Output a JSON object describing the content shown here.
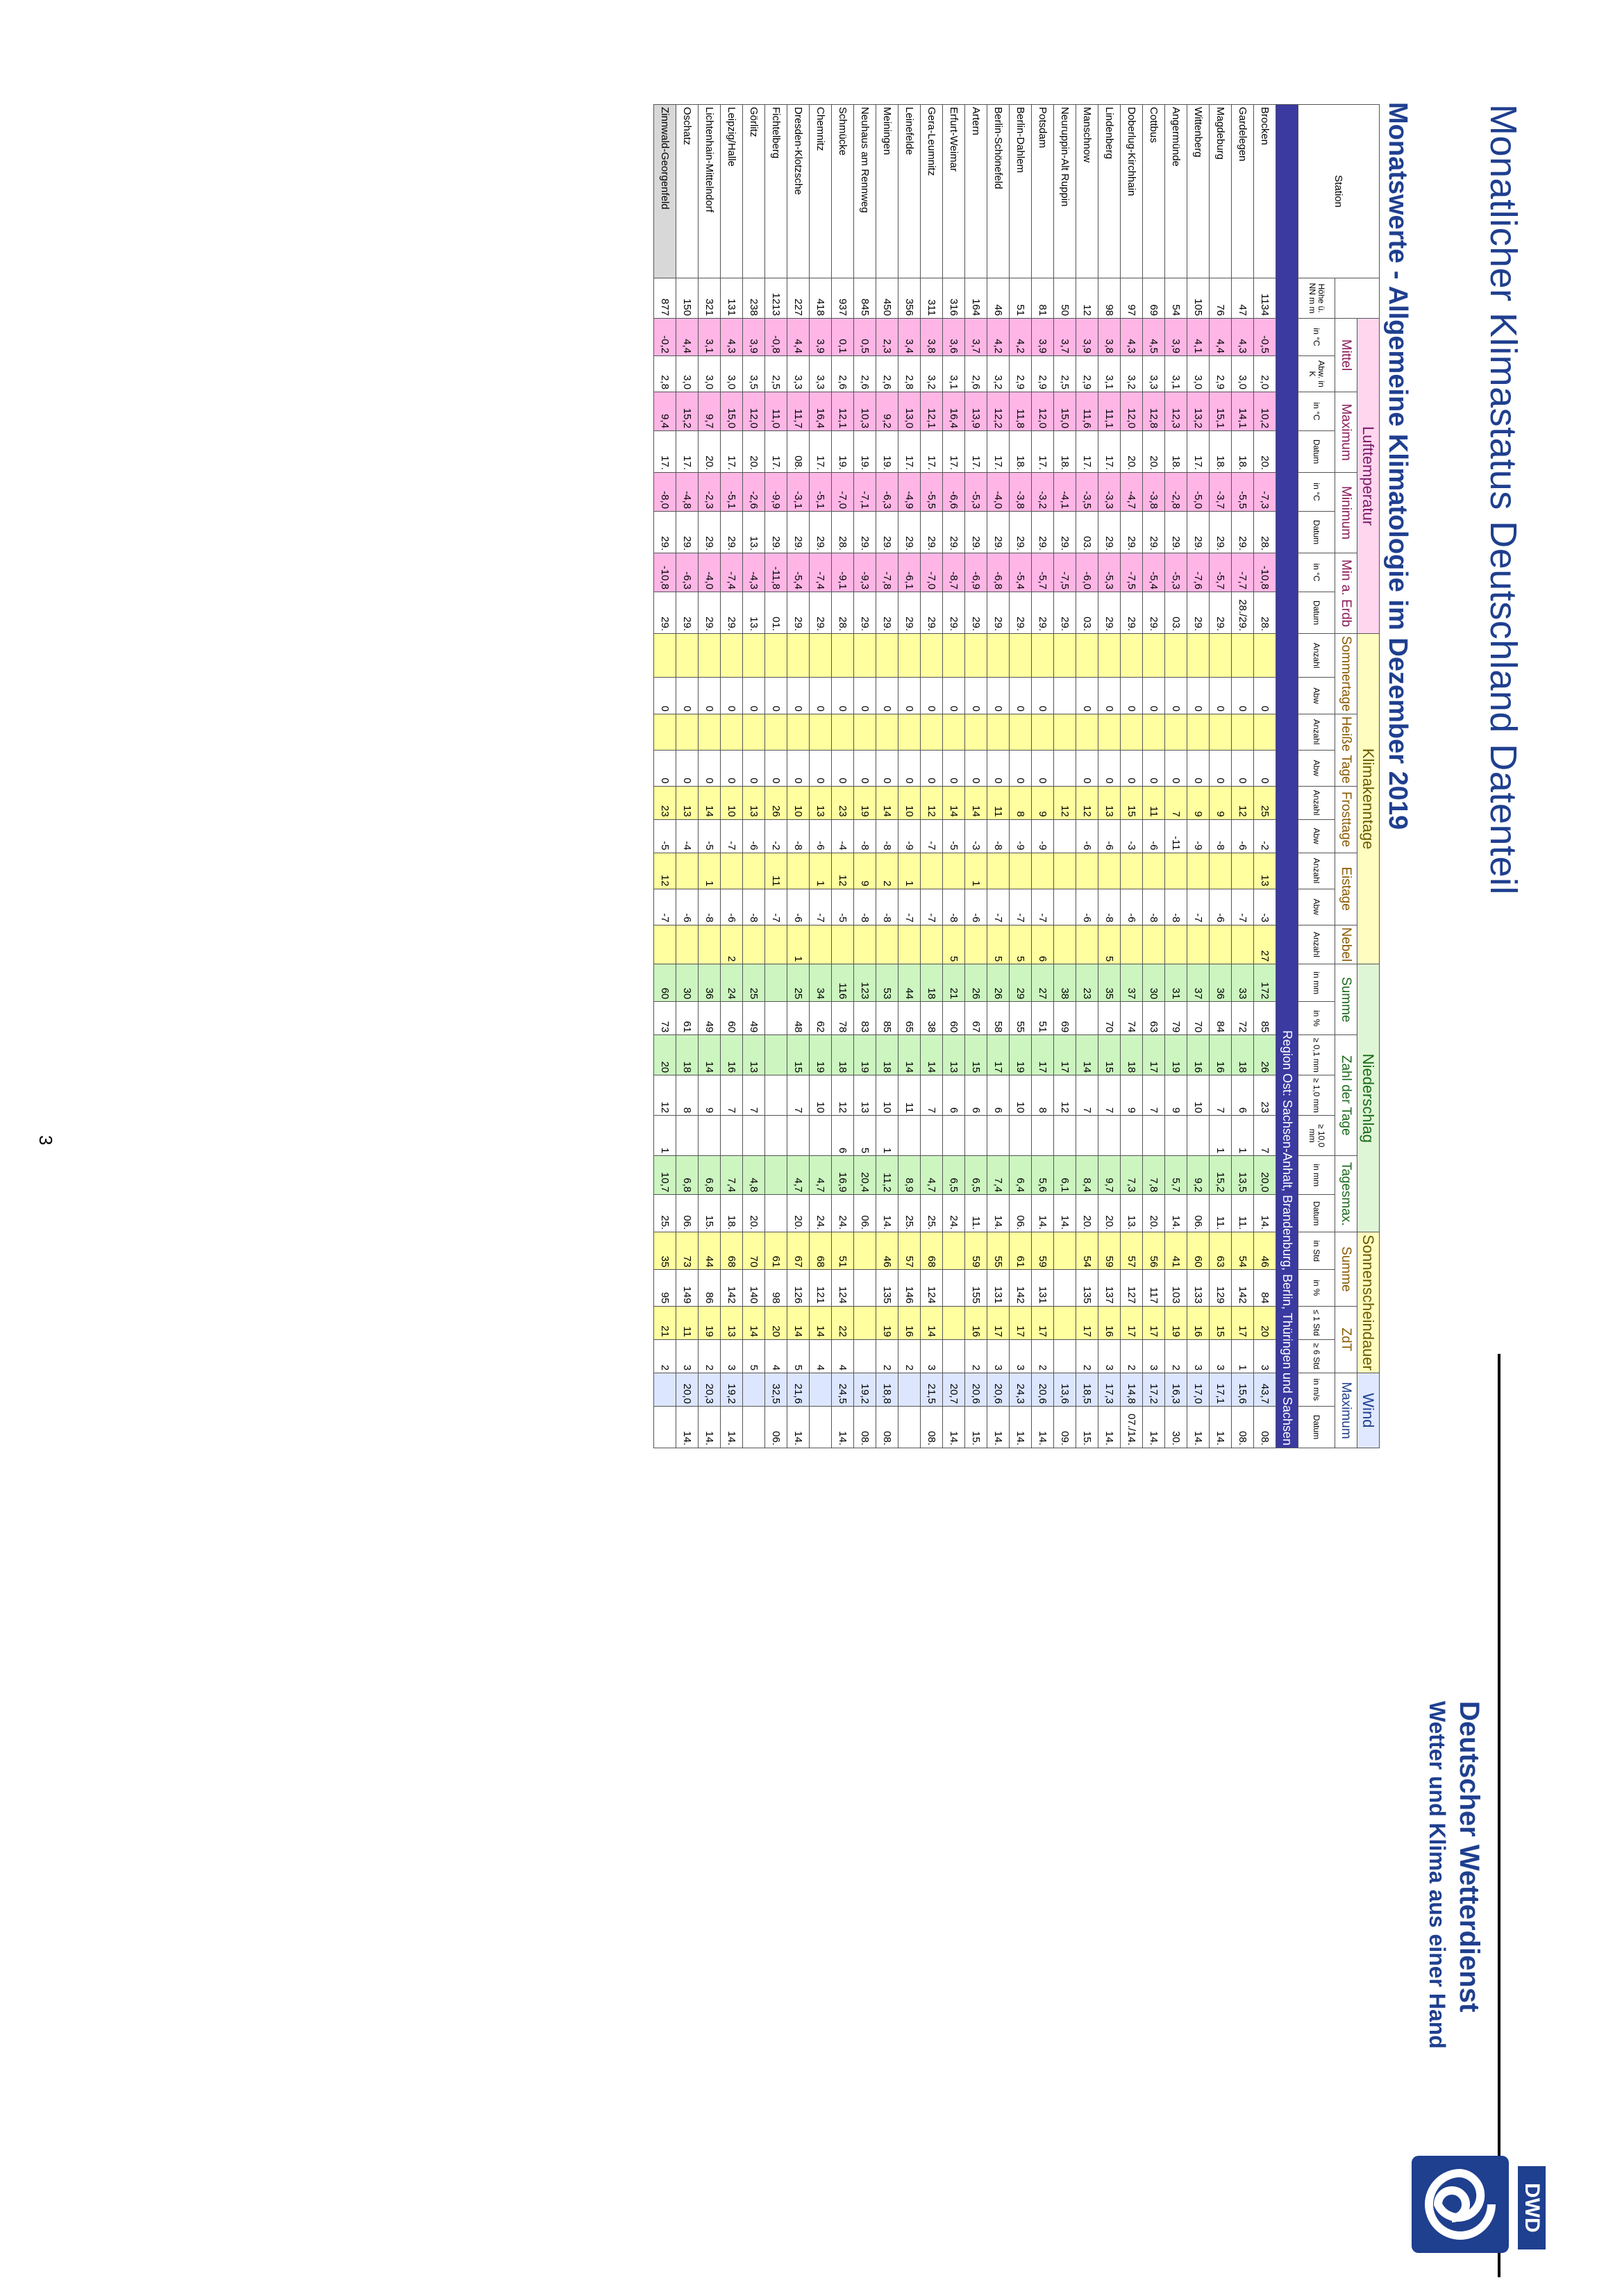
{
  "header": {
    "title": "Monatlicher Klimastatus Deutschland Datenteil",
    "subtitle": "Monatswerte - Allgemeine Klimatologie im Dezember 2019",
    "org_name": "Deutscher Wetterdienst",
    "org_slogan": "Wetter und Klima aus einer Hand",
    "logo_text": "DWD"
  },
  "groups": {
    "station": "Station",
    "temp": "Lufttemperatur",
    "klima": "Klimakenntage",
    "nied": "Niederschlag",
    "sonne": "Sonnenscheindauer",
    "wind": "Wind"
  },
  "subgroups": {
    "mittel": "Mittel",
    "maximum": "Maximum",
    "minimum": "Minimum",
    "min_erdb": "Min a. Erdb",
    "sommertage": "Sommertage",
    "heisse": "Heiße Tage",
    "frosttage": "Frosttage",
    "eistage": "Eistage",
    "nebel": "Nebel",
    "summe": "Summe",
    "zahl": "Zahl der Tage",
    "tagesmax": "Tagesmax.",
    "s_summe": "Summe",
    "zdt": "ZdT",
    "w_max": "Maximum"
  },
  "units": [
    "Höhe ü. NN m m",
    "in °C",
    "Abw. in K",
    "in °C",
    "Datum",
    "in °C",
    "Datum",
    "in °C",
    "Datum",
    "Anzahl",
    "Abw",
    "Anzahl",
    "Abw",
    "Anzahl",
    "Abw",
    "Anzahl",
    "Abw",
    "Anzahl",
    "in mm",
    "in %",
    "≥ 0,1 mm",
    "≥ 1,0 mm",
    "≥ 10,0 mm",
    "in mm",
    "Datum",
    "in Std",
    "in %",
    "≤ 1 Std",
    "≥ 6 Std",
    "in m/s",
    "Datum"
  ],
  "region": "Region Ost: Sachsen-Anhalt, Brandenburg, Berlin, Thüringen und Sachsen",
  "rows": [
    {
      "s": "Brocken",
      "v": [
        "1134",
        "-0,5",
        "2,0",
        "10,2",
        "20.",
        "-7,3",
        "28.",
        "-10,8",
        "28.",
        "",
        "0",
        "",
        "0",
        "25",
        "-2",
        "13",
        "-3",
        "27",
        "172",
        "85",
        "26",
        "23",
        "7",
        "20,0",
        "14.",
        "46",
        "84",
        "20",
        "3",
        "43,7",
        "08."
      ],
      "g": false
    },
    {
      "s": "Gardelegen",
      "v": [
        "47",
        "4,3",
        "3,0",
        "14,1",
        "18.",
        "-5,5",
        "29.",
        "-7,7",
        "28./29.",
        "",
        "0",
        "",
        "0",
        "12",
        "-6",
        "",
        "-7",
        "",
        "33",
        "72",
        "18",
        "6",
        "1",
        "13,5",
        "11.",
        "54",
        "142",
        "17",
        "1",
        "15,6",
        "08."
      ],
      "g": false
    },
    {
      "s": "Magdeburg",
      "v": [
        "76",
        "4,4",
        "2,9",
        "15,1",
        "18.",
        "-3,7",
        "29.",
        "-5,7",
        "29.",
        "",
        "0",
        "",
        "0",
        "9",
        "-8",
        "",
        "-6",
        "",
        "36",
        "84",
        "16",
        "7",
        "1",
        "15,2",
        "11.",
        "63",
        "129",
        "15",
        "3",
        "17,1",
        "14."
      ],
      "g": false
    },
    {
      "s": "Wittenberg",
      "v": [
        "105",
        "4,1",
        "3,0",
        "13,2",
        "17.",
        "-5,0",
        "29.",
        "-7,6",
        "29.",
        "",
        "0",
        "",
        "0",
        "9",
        "-9",
        "",
        "-7",
        "",
        "37",
        "70",
        "16",
        "10",
        "",
        "9,2",
        "06.",
        "60",
        "133",
        "16",
        "3",
        "17,0",
        "14."
      ],
      "g": false
    },
    {
      "s": "Angermünde",
      "v": [
        "54",
        "3,9",
        "3,1",
        "12,3",
        "18.",
        "-2,8",
        "29.",
        "-5,3",
        "03.",
        "",
        "0",
        "",
        "0",
        "7",
        "-11",
        "",
        "-8",
        "",
        "31",
        "79",
        "19",
        "9",
        "",
        "5,7",
        "14.",
        "41",
        "103",
        "19",
        "2",
        "16,3",
        "30."
      ],
      "g": false
    },
    {
      "s": "Cottbus",
      "v": [
        "69",
        "4,5",
        "3,3",
        "12,8",
        "20.",
        "-3,8",
        "29.",
        "-5,4",
        "29.",
        "",
        "0",
        "",
        "0",
        "11",
        "-6",
        "",
        "-8",
        "",
        "30",
        "63",
        "17",
        "7",
        "",
        "7,8",
        "20.",
        "56",
        "117",
        "17",
        "3",
        "17,2",
        "14."
      ],
      "g": false
    },
    {
      "s": "Doberlug-Kirchhain",
      "v": [
        "97",
        "4,3",
        "3,2",
        "12,0",
        "20.",
        "-4,7",
        "29.",
        "-7,5",
        "29.",
        "",
        "0",
        "",
        "0",
        "15",
        "-3",
        "",
        "-6",
        "",
        "37",
        "74",
        "18",
        "9",
        "",
        "7,3",
        "13.",
        "57",
        "127",
        "17",
        "2",
        "14,8",
        "07./14."
      ],
      "g": false
    },
    {
      "s": "Lindenberg",
      "v": [
        "98",
        "3,8",
        "3,1",
        "11,1",
        "17.",
        "-3,3",
        "29.",
        "-5,3",
        "29.",
        "",
        "0",
        "",
        "0",
        "13",
        "-6",
        "",
        "-8",
        "5",
        "35",
        "70",
        "15",
        "7",
        "",
        "9,7",
        "20.",
        "59",
        "137",
        "16",
        "3",
        "17,3",
        "14."
      ],
      "g": false
    },
    {
      "s": "Manschnow",
      "v": [
        "12",
        "3,9",
        "2,9",
        "11,6",
        "17.",
        "-3,5",
        "03.",
        "-6,0",
        "03.",
        "",
        "0",
        "",
        "0",
        "12",
        "-6",
        "",
        "-6",
        "",
        "23",
        "",
        "14",
        "7",
        "",
        "8,4",
        "20.",
        "54",
        "135",
        "17",
        "2",
        "18,5",
        "15."
      ],
      "g": false
    },
    {
      "s": "Neuruppin-Alt Ruppin",
      "v": [
        "50",
        "3,7",
        "2,5",
        "15,0",
        "18.",
        "-4,1",
        "29.",
        "-7,5",
        "29.",
        "",
        "",
        "",
        "",
        "12",
        "",
        "",
        "",
        "",
        "38",
        "69",
        "17",
        "12",
        "",
        "6,1",
        "14.",
        "",
        "",
        "",
        "",
        "13,6",
        "09."
      ],
      "g": false
    },
    {
      "s": "Potsdam",
      "v": [
        "81",
        "3,9",
        "2,9",
        "12,0",
        "17.",
        "-3,2",
        "29.",
        "-5,7",
        "29.",
        "",
        "0",
        "",
        "0",
        "9",
        "-9",
        "",
        "-7",
        "6",
        "27",
        "51",
        "17",
        "8",
        "",
        "5,6",
        "14.",
        "59",
        "131",
        "17",
        "2",
        "20,6",
        "14."
      ],
      "g": false
    },
    {
      "s": "Berlin-Dahlem",
      "v": [
        "51",
        "4,2",
        "2,9",
        "11,8",
        "18.",
        "-3,8",
        "29.",
        "-5,4",
        "29.",
        "",
        "0",
        "",
        "0",
        "8",
        "-9",
        "",
        "-7",
        "5",
        "29",
        "55",
        "19",
        "10",
        "",
        "6,4",
        "06.",
        "61",
        "142",
        "17",
        "3",
        "24,3",
        "14."
      ],
      "g": false
    },
    {
      "s": "Berlin-Schönefeld",
      "v": [
        "46",
        "4,2",
        "3,2",
        "12,2",
        "17.",
        "-4,0",
        "29.",
        "-6,8",
        "29.",
        "",
        "0",
        "",
        "0",
        "11",
        "-8",
        "",
        "-7",
        "5",
        "26",
        "58",
        "17",
        "6",
        "",
        "7,4",
        "14.",
        "55",
        "131",
        "17",
        "3",
        "20,6",
        "14."
      ],
      "g": false
    },
    {
      "s": "Artern",
      "v": [
        "164",
        "3,7",
        "2,6",
        "13,9",
        "17.",
        "-5,3",
        "29.",
        "-6,9",
        "29.",
        "",
        "0",
        "",
        "0",
        "14",
        "-3",
        "1",
        "-6",
        "",
        "26",
        "67",
        "15",
        "6",
        "",
        "6,5",
        "11.",
        "59",
        "155",
        "16",
        "2",
        "20,6",
        "15."
      ],
      "g": false
    },
    {
      "s": "Erfurt-Weimar",
      "v": [
        "316",
        "3,6",
        "3,1",
        "16,4",
        "17.",
        "-6,6",
        "29.",
        "-8,7",
        "29.",
        "",
        "0",
        "",
        "0",
        "14",
        "-5",
        "",
        "-8",
        "5",
        "21",
        "60",
        "13",
        "6",
        "",
        "6,5",
        "24.",
        "",
        "",
        "",
        "",
        "20,7",
        "14."
      ],
      "g": false
    },
    {
      "s": "Gera-Leumnitz",
      "v": [
        "311",
        "3,8",
        "3,2",
        "12,1",
        "17.",
        "-5,5",
        "29.",
        "-7,0",
        "29.",
        "",
        "0",
        "",
        "0",
        "12",
        "-7",
        "",
        "-7",
        "",
        "18",
        "38",
        "14",
        "7",
        "",
        "4,7",
        "25.",
        "68",
        "124",
        "14",
        "3",
        "21,5",
        "08."
      ],
      "g": false
    },
    {
      "s": "Leinefelde",
      "v": [
        "356",
        "3,4",
        "2,8",
        "13,0",
        "17.",
        "-4,9",
        "29.",
        "-6,1",
        "29.",
        "",
        "0",
        "",
        "0",
        "10",
        "-9",
        "1",
        "-7",
        "",
        "44",
        "65",
        "14",
        "11",
        "",
        "8,9",
        "25.",
        "57",
        "146",
        "16",
        "2",
        "",
        ""
      ],
      "g": false
    },
    {
      "s": "Meiningen",
      "v": [
        "450",
        "2,3",
        "2,6",
        "9,2",
        "19.",
        "-6,3",
        "29.",
        "-7,8",
        "29.",
        "",
        "0",
        "",
        "0",
        "14",
        "-8",
        "2",
        "-8",
        "",
        "53",
        "85",
        "18",
        "10",
        "1",
        "11,2",
        "14.",
        "46",
        "135",
        "19",
        "2",
        "18,8",
        "08."
      ],
      "g": false
    },
    {
      "s": "Neuhaus am Rennweg",
      "v": [
        "845",
        "0,5",
        "2,6",
        "10,3",
        "19.",
        "-7,1",
        "29.",
        "-9,3",
        "29.",
        "",
        "0",
        "",
        "0",
        "19",
        "-8",
        "9",
        "-8",
        "",
        "123",
        "83",
        "19",
        "13",
        "5",
        "20,4",
        "06.",
        "",
        "",
        "",
        "",
        "19,2",
        "08."
      ],
      "g": false
    },
    {
      "s": "Schmücke",
      "v": [
        "937",
        "0,1",
        "2,6",
        "12,1",
        "19.",
        "-7,0",
        "28.",
        "-9,1",
        "28.",
        "",
        "0",
        "",
        "0",
        "23",
        "-4",
        "12",
        "-5",
        "",
        "116",
        "78",
        "18",
        "12",
        "6",
        "16,9",
        "24.",
        "51",
        "124",
        "22",
        "4",
        "24,5",
        "14."
      ],
      "g": false
    },
    {
      "s": "Chemnitz",
      "v": [
        "418",
        "3,9",
        "3,3",
        "16,4",
        "17.",
        "-5,1",
        "29.",
        "-7,4",
        "29.",
        "",
        "0",
        "",
        "0",
        "13",
        "-6",
        "1",
        "-7",
        "",
        "34",
        "62",
        "19",
        "10",
        "",
        "4,7",
        "24.",
        "68",
        "121",
        "14",
        "4",
        "",
        ""
      ],
      "g": false
    },
    {
      "s": "Dresden-Klotzsche",
      "v": [
        "227",
        "4,4",
        "3,3",
        "11,7",
        "08.",
        "-3,1",
        "29.",
        "-5,4",
        "29.",
        "",
        "0",
        "",
        "0",
        "10",
        "-8",
        "",
        "-6",
        "1",
        "25",
        "48",
        "15",
        "7",
        "",
        "4,7",
        "20.",
        "67",
        "126",
        "14",
        "5",
        "21,6",
        "14."
      ],
      "g": false
    },
    {
      "s": "Fichtelberg",
      "v": [
        "1213",
        "-0,8",
        "2,5",
        "11,0",
        "17.",
        "-9,9",
        "29.",
        "-11,8",
        "01.",
        "",
        "0",
        "",
        "0",
        "26",
        "-2",
        "11",
        "-7",
        "",
        "",
        "",
        "",
        "",
        "",
        "",
        "",
        "61",
        "98",
        "20",
        "4",
        "32,5",
        "06."
      ],
      "g": false
    },
    {
      "s": "Görlitz",
      "v": [
        "238",
        "3,9",
        "3,5",
        "12,0",
        "20.",
        "-2,6",
        "13.",
        "-4,3",
        "13.",
        "",
        "0",
        "",
        "0",
        "13",
        "-6",
        "",
        "-8",
        "",
        "25",
        "49",
        "13",
        "7",
        "",
        "4,8",
        "20.",
        "70",
        "140",
        "14",
        "5",
        "",
        ""
      ],
      "g": false
    },
    {
      "s": "Leipzig/Halle",
      "v": [
        "131",
        "4,3",
        "3,0",
        "15,0",
        "17.",
        "-5,1",
        "29.",
        "-7,4",
        "29.",
        "",
        "0",
        "",
        "0",
        "10",
        "-7",
        "",
        "-6",
        "2",
        "24",
        "60",
        "16",
        "7",
        "",
        "7,4",
        "18.",
        "68",
        "142",
        "13",
        "3",
        "19,2",
        "14."
      ],
      "g": false
    },
    {
      "s": "Lichtenhain-Mittelndorf",
      "v": [
        "321",
        "3,1",
        "3,0",
        "9,7",
        "20.",
        "-2,3",
        "29.",
        "-4,0",
        "29.",
        "",
        "0",
        "",
        "0",
        "14",
        "-5",
        "1",
        "-8",
        "",
        "36",
        "49",
        "14",
        "9",
        "",
        "6,8",
        "15.",
        "44",
        "86",
        "19",
        "2",
        "20,3",
        "14."
      ],
      "g": false
    },
    {
      "s": "Oschatz",
      "v": [
        "150",
        "4,4",
        "3,0",
        "15,2",
        "17.",
        "-4,8",
        "29.",
        "-6,3",
        "29.",
        "",
        "0",
        "",
        "0",
        "13",
        "-4",
        "",
        "-6",
        "",
        "30",
        "61",
        "18",
        "8",
        "",
        "6,8",
        "06.",
        "73",
        "149",
        "11",
        "3",
        "20,0",
        "14."
      ],
      "g": false
    },
    {
      "s": "Zinnwald-Georgenfeld",
      "v": [
        "877",
        "-0,2",
        "2,8",
        "9,4",
        "17.",
        "-8,0",
        "29.",
        "-10,8",
        "29.",
        "",
        "0",
        "",
        "0",
        "23",
        "-5",
        "12",
        "-7",
        "",
        "60",
        "73",
        "20",
        "12",
        "1",
        "10,7",
        "25.",
        "35",
        "95",
        "21",
        "2",
        "",
        ""
      ],
      "g": true
    }
  ],
  "page_number": "3"
}
